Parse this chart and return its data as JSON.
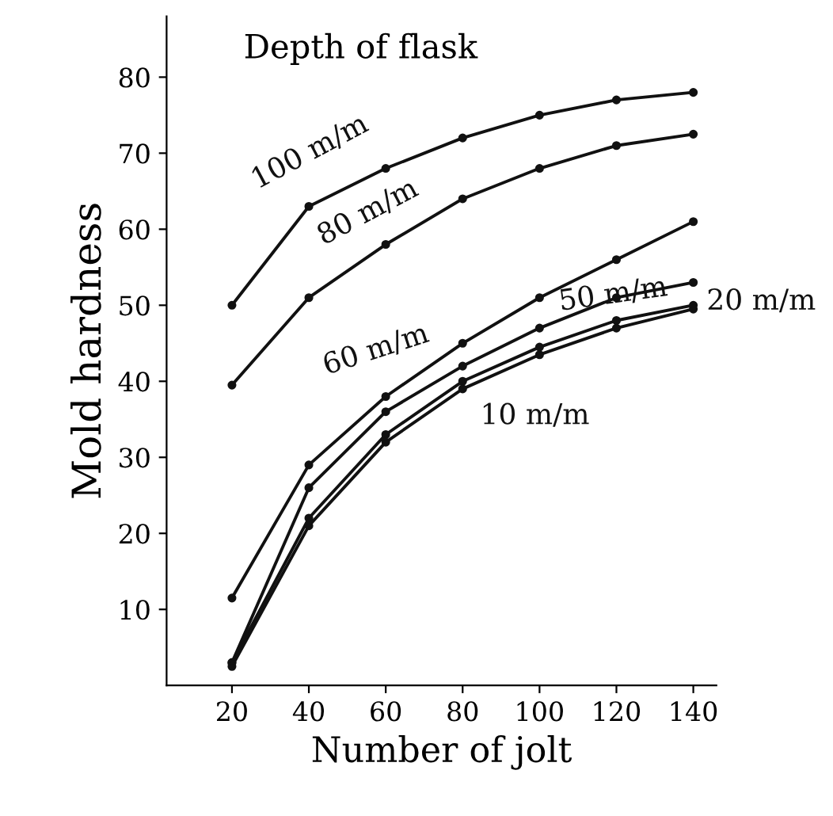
{
  "chart_data": {
    "type": "line",
    "title": "Depth of flask",
    "xlabel": "Number of jolt",
    "ylabel": "Mold hardness",
    "x": [
      20,
      40,
      60,
      80,
      100,
      120,
      140
    ],
    "series": [
      {
        "name": "100 m/m",
        "color": "#111111",
        "values": [
          50,
          63,
          68,
          72,
          75,
          77,
          78
        ]
      },
      {
        "name": "80 m/m",
        "color": "#111111",
        "values": [
          39.5,
          51,
          58,
          64,
          68,
          71,
          72.5
        ]
      },
      {
        "name": "60 m/m",
        "color": "#111111",
        "values": [
          11.5,
          29,
          38,
          45,
          51,
          56,
          61
        ]
      },
      {
        "name": "50 m/m",
        "color": "#111111",
        "values": [
          3,
          26,
          36,
          42,
          47,
          51,
          53
        ]
      },
      {
        "name": "20 m/m",
        "color": "#111111",
        "values": [
          3,
          22,
          33,
          40,
          44.5,
          48,
          50
        ]
      },
      {
        "name": "10 m/m",
        "color": "#111111",
        "values": [
          2.5,
          21,
          32,
          39,
          43.5,
          47,
          49.5
        ]
      }
    ],
    "xlim": [
      3,
      146
    ],
    "ylim": [
      0,
      88
    ],
    "xticks": [
      20,
      40,
      60,
      80,
      100,
      120,
      140
    ],
    "yticks": [
      10,
      20,
      30,
      40,
      50,
      60,
      70,
      80
    ],
    "grid": false,
    "marker": "circle",
    "line_style": "solid"
  }
}
